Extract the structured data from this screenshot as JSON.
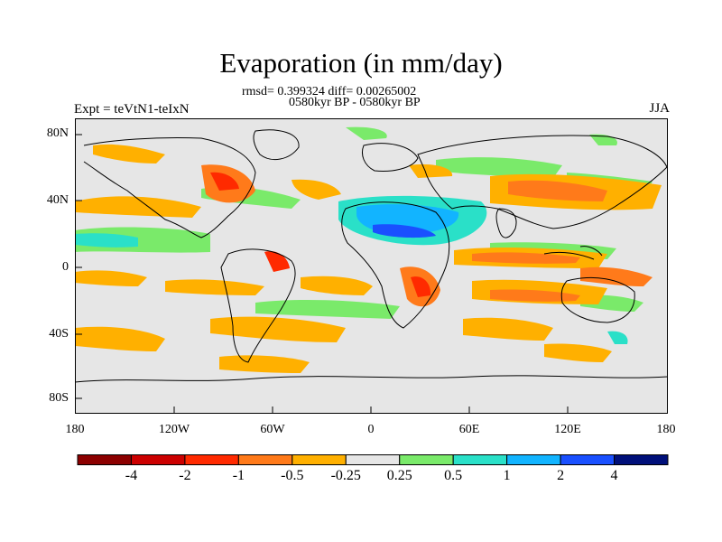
{
  "title": "Evaporation (in mm/day)",
  "stats": "rmsd= 0.399324 diff= 0.00265002",
  "period": "0580kyr BP - 0580kyr BP",
  "expt_label": "Expt = teVtN1-teIxN",
  "season": "JJA",
  "lat_labels": [
    "80N",
    "40N",
    "0",
    "40S",
    "80S"
  ],
  "lon_labels": [
    "180",
    "120W",
    "60W",
    "0",
    "60E",
    "120E",
    "180"
  ],
  "colorbar": {
    "colors": [
      "#8c0000",
      "#cc0000",
      "#ff2a00",
      "#ff7a1a",
      "#ffb000",
      "#e6e6e6",
      "#7aea6a",
      "#2ae0c8",
      "#12b4ff",
      "#1a50ff",
      "#00107a"
    ],
    "labels": [
      "-4",
      "-2",
      "-1",
      "-0.5",
      "-0.25",
      "0.25",
      "0.5",
      "1",
      "2",
      "4"
    ]
  }
}
